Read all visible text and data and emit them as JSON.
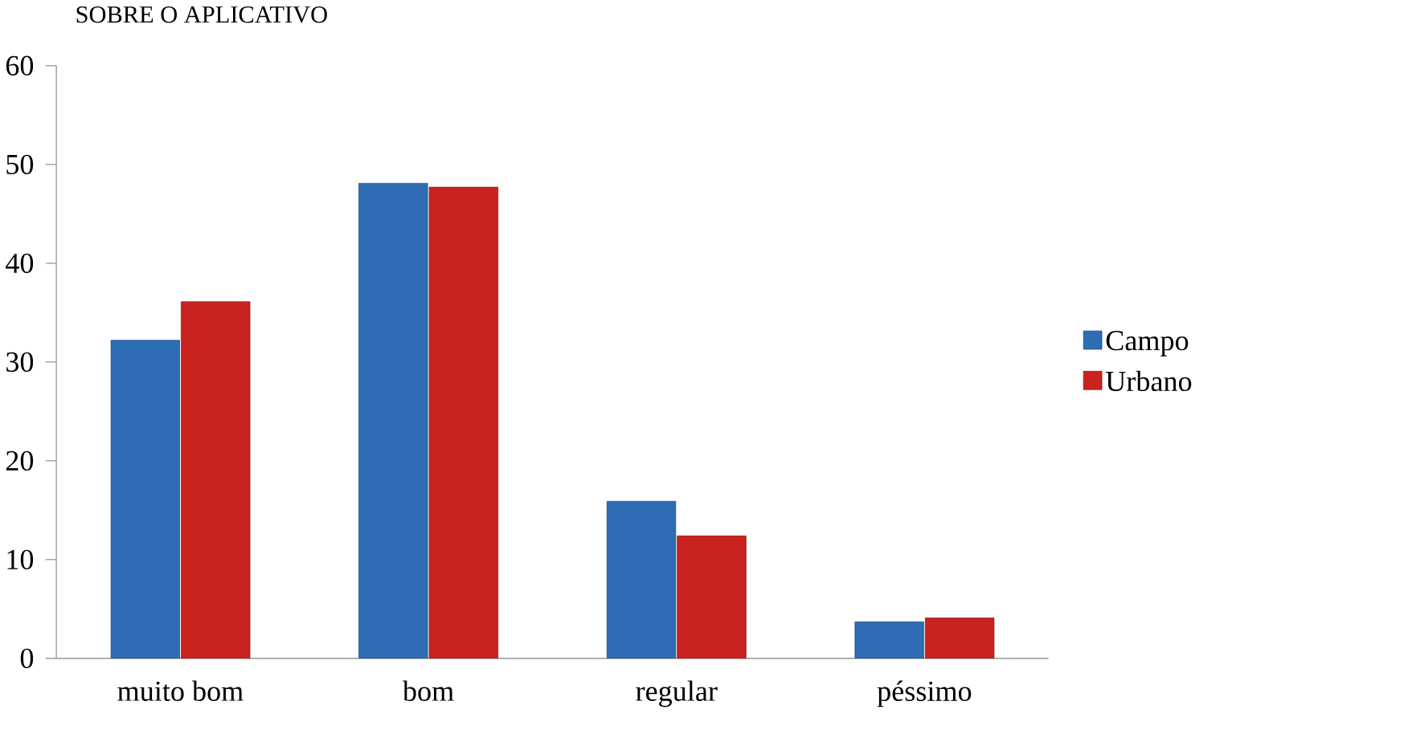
{
  "chart_data": {
    "type": "bar",
    "title": "SOBRE O APLICATIVO",
    "categories": [
      "muito bom",
      "bom",
      "regular",
      "péssimo"
    ],
    "series": [
      {
        "name": "Campo",
        "color": "#2e6db4",
        "values": [
          32.2,
          48.1,
          15.9,
          3.7
        ]
      },
      {
        "name": "Urbano",
        "color": "#c8231f",
        "values": [
          36.1,
          47.7,
          12.4,
          4.1
        ]
      }
    ],
    "ylim": [
      0,
      60
    ],
    "yticks": [
      0,
      10,
      20,
      30,
      40,
      50,
      60
    ],
    "legend": "right",
    "grid": false
  }
}
